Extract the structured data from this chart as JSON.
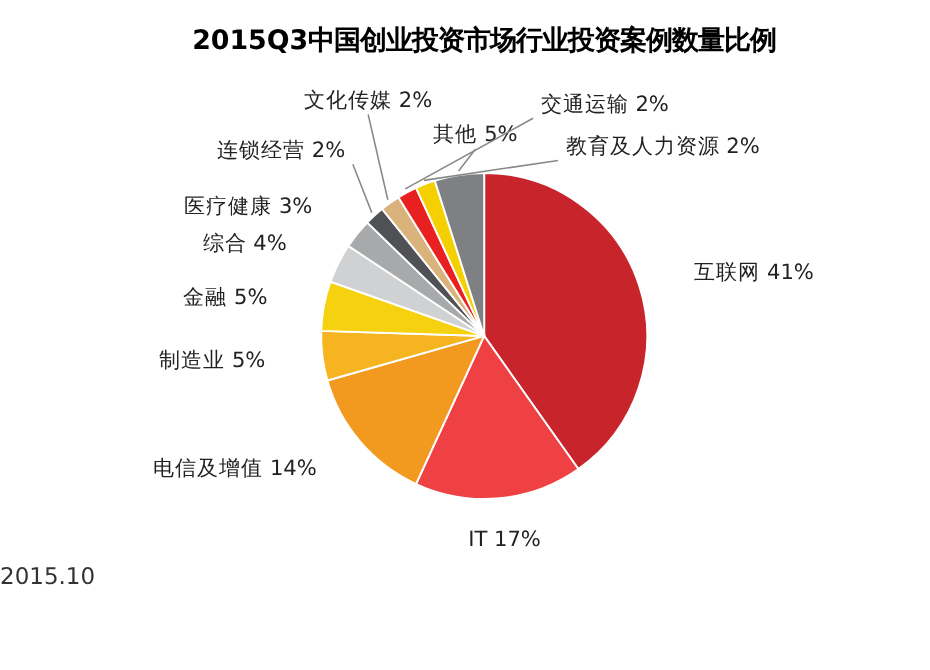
{
  "chart_data": {
    "type": "pie",
    "title": "2015Q3中国创业投资市场行业投资案例数量比例",
    "categories": [
      "互联网",
      "IT",
      "电信及增值",
      "制造业",
      "金融",
      "综合",
      "医疗健康",
      "连锁经营",
      "文化传媒",
      "交通运输",
      "教育及人力资源",
      "其他"
    ],
    "values": [
      41,
      17,
      14,
      5,
      5,
      4,
      3,
      2,
      2,
      2,
      2,
      5
    ],
    "colors": [
      "#c8242b",
      "#ef4044",
      "#f29a1f",
      "#f7b421",
      "#f5d10f",
      "#cfd1d3",
      "#a8a9ab",
      "#505154",
      "#d9b27c",
      "#e8201f",
      "#f5d000",
      "#7f8084"
    ],
    "value_labels": [
      "41%",
      "17%",
      "14%",
      "5%",
      "5%",
      "4%",
      "3%",
      "2%",
      "2%",
      "2%",
      "2%",
      "5%"
    ],
    "annotations": [
      "2015.10"
    ],
    "legend": false
  }
}
